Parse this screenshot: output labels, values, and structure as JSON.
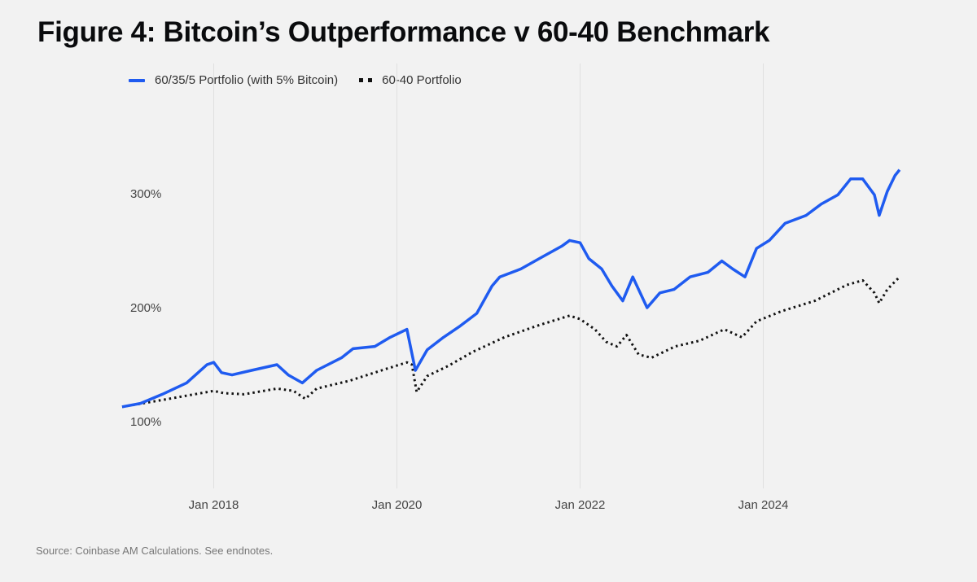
{
  "chart_data": {
    "type": "line",
    "title": "Figure 4: Bitcoin’s Outperformance v 60-40 Benchmark",
    "source": "Source: Coinbase AM Calculations. See endnotes.",
    "xlabel": "",
    "ylabel": "",
    "x_ticks": [
      {
        "date": "2018-01-01",
        "label": "Jan 2018"
      },
      {
        "date": "2020-01-01",
        "label": "Jan 2020"
      },
      {
        "date": "2022-01-01",
        "label": "Jan 2022"
      },
      {
        "date": "2024-01-01",
        "label": "Jan 2024"
      }
    ],
    "y_ticks": [
      {
        "value": 100,
        "label": "100%"
      },
      {
        "value": 200,
        "label": "200%"
      },
      {
        "value": 300,
        "label": "300%"
      }
    ],
    "xlim": [
      "2016-12-01",
      "2025-09-01"
    ],
    "ylim": [
      40,
      415
    ],
    "grid": {
      "vertical": true,
      "horizontal": false
    },
    "legend": {
      "placement": "top-left"
    },
    "series": [
      {
        "name": "60/35/5 Portfolio (with 5% Bitcoin)",
        "color": "#1f5bf0",
        "style": "solid",
        "points": [
          [
            "2017-01-01",
            113
          ],
          [
            "2017-03-15",
            116
          ],
          [
            "2017-06-10",
            124
          ],
          [
            "2017-09-15",
            134
          ],
          [
            "2017-12-05",
            150
          ],
          [
            "2018-01-01",
            152
          ],
          [
            "2018-02-01",
            143
          ],
          [
            "2018-03-15",
            141
          ],
          [
            "2018-06-01",
            145
          ],
          [
            "2018-09-10",
            150
          ],
          [
            "2018-10-25",
            141
          ],
          [
            "2018-12-20",
            134
          ],
          [
            "2019-02-15",
            145
          ],
          [
            "2019-05-25",
            156
          ],
          [
            "2019-07-10",
            164
          ],
          [
            "2019-10-05",
            166
          ],
          [
            "2019-12-05",
            174
          ],
          [
            "2020-02-10",
            181
          ],
          [
            "2020-03-15",
            145
          ],
          [
            "2020-05-01",
            163
          ],
          [
            "2020-07-05",
            174
          ],
          [
            "2020-09-10",
            184
          ],
          [
            "2020-11-15",
            195
          ],
          [
            "2021-01-15",
            219
          ],
          [
            "2021-02-15",
            227
          ],
          [
            "2021-05-10",
            234
          ],
          [
            "2021-07-30",
            244
          ],
          [
            "2021-10-20",
            254
          ],
          [
            "2021-11-20",
            259
          ],
          [
            "2022-01-01",
            257
          ],
          [
            "2022-02-05",
            243
          ],
          [
            "2022-03-28",
            234
          ],
          [
            "2022-05-08",
            219
          ],
          [
            "2022-06-20",
            206
          ],
          [
            "2022-07-30",
            227
          ],
          [
            "2022-09-25",
            200
          ],
          [
            "2022-11-15",
            213
          ],
          [
            "2023-01-10",
            216
          ],
          [
            "2023-03-15",
            227
          ],
          [
            "2023-05-25",
            231
          ],
          [
            "2023-07-20",
            241
          ],
          [
            "2023-09-01",
            234
          ],
          [
            "2023-10-20",
            227
          ],
          [
            "2023-12-05",
            252
          ],
          [
            "2024-01-25",
            259
          ],
          [
            "2024-03-28",
            274
          ],
          [
            "2024-06-20",
            281
          ],
          [
            "2024-08-20",
            291
          ],
          [
            "2024-10-25",
            299
          ],
          [
            "2024-12-15",
            313
          ],
          [
            "2025-02-01",
            313
          ],
          [
            "2025-03-20",
            299
          ],
          [
            "2025-04-08",
            281
          ],
          [
            "2025-05-10",
            302
          ],
          [
            "2025-06-10",
            316
          ],
          [
            "2025-06-28",
            321
          ]
        ]
      },
      {
        "name": "60-40 Portfolio",
        "color": "#111111",
        "style": "dotted",
        "points": [
          [
            "2017-01-01",
            113
          ],
          [
            "2017-06-10",
            119
          ],
          [
            "2018-01-01",
            127
          ],
          [
            "2018-02-10",
            125
          ],
          [
            "2018-05-01",
            124
          ],
          [
            "2018-09-10",
            129
          ],
          [
            "2018-11-15",
            127
          ],
          [
            "2019-01-01",
            120
          ],
          [
            "2019-02-15",
            129
          ],
          [
            "2019-06-28",
            136
          ],
          [
            "2019-11-01",
            145
          ],
          [
            "2020-02-10",
            152
          ],
          [
            "2020-03-01",
            150
          ],
          [
            "2020-03-20",
            126
          ],
          [
            "2020-05-01",
            140
          ],
          [
            "2020-07-25",
            149
          ],
          [
            "2020-10-28",
            161
          ],
          [
            "2021-03-05",
            174
          ],
          [
            "2021-07-12",
            184
          ],
          [
            "2021-11-20",
            193
          ],
          [
            "2022-01-01",
            190
          ],
          [
            "2022-03-01",
            181
          ],
          [
            "2022-04-15",
            170
          ],
          [
            "2022-05-28",
            166
          ],
          [
            "2022-07-05",
            176
          ],
          [
            "2022-08-22",
            159
          ],
          [
            "2022-10-12",
            156
          ],
          [
            "2023-01-15",
            166
          ],
          [
            "2023-04-22",
            171
          ],
          [
            "2023-07-30",
            181
          ],
          [
            "2023-10-08",
            174
          ],
          [
            "2023-12-05",
            188
          ],
          [
            "2024-03-15",
            197
          ],
          [
            "2024-07-25",
            206
          ],
          [
            "2024-11-30",
            220
          ],
          [
            "2025-02-01",
            224
          ],
          [
            "2025-03-20",
            213
          ],
          [
            "2025-04-08",
            204
          ],
          [
            "2025-05-10",
            216
          ],
          [
            "2025-06-28",
            227
          ]
        ]
      }
    ]
  }
}
